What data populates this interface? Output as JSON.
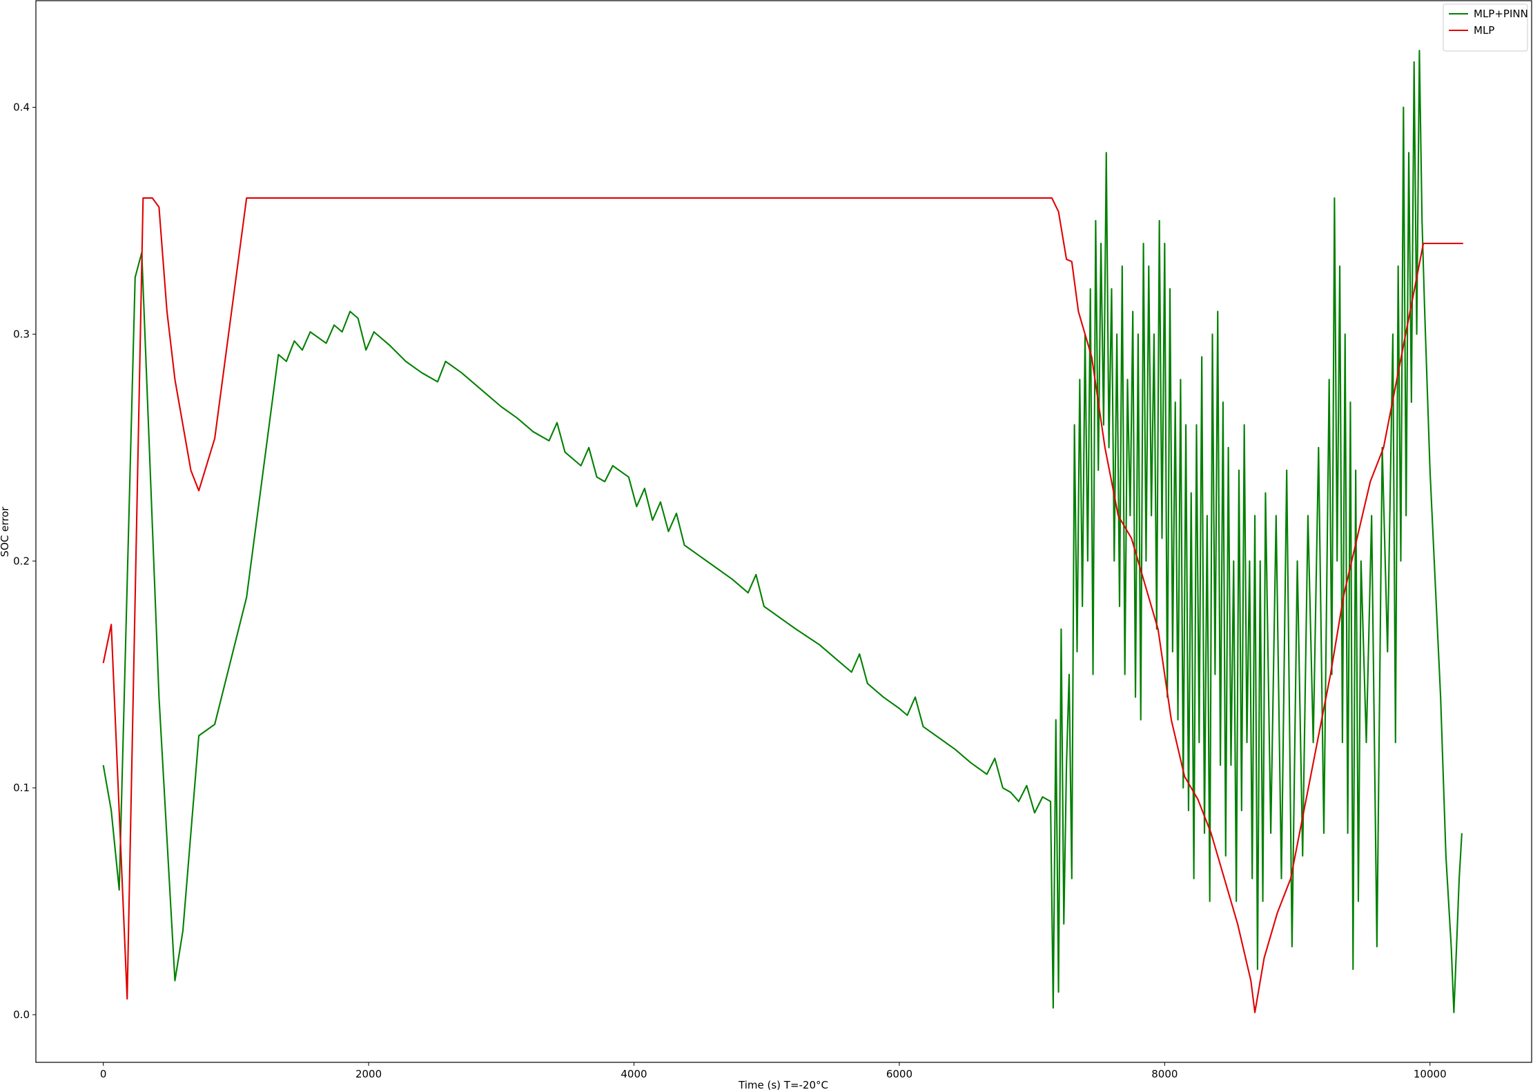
{
  "chart_data": {
    "type": "line",
    "xlabel": "Time (s) T=-20°C",
    "ylabel": "SOC error",
    "xlim": [
      -508,
      10766
    ],
    "ylim": [
      -0.021,
      0.447
    ],
    "xticks": [
      0,
      2000,
      4000,
      6000,
      8000,
      10000
    ],
    "yticks": [
      {
        "value": 0,
        "label": "0.0"
      },
      0.1,
      0.2,
      0.3,
      0.4
    ],
    "legend": "upper right",
    "series": [
      {
        "name": "MLP+PINN",
        "color": "#008000",
        "x": [
          0,
          60,
          120,
          240,
          290,
          420,
          540,
          600,
          720,
          840,
          1080,
          1320,
          1380,
          1440,
          1500,
          1560,
          1680,
          1740,
          1800,
          1860,
          1920,
          1980,
          2040,
          2160,
          2280,
          2400,
          2520,
          2580,
          2700,
          2820,
          3000,
          3120,
          3240,
          3360,
          3420,
          3480,
          3600,
          3660,
          3720,
          3780,
          3840,
          3960,
          4020,
          4080,
          4140,
          4200,
          4260,
          4320,
          4380,
          4500,
          4620,
          4740,
          4860,
          4920,
          4980,
          5100,
          5220,
          5400,
          5520,
          5640,
          5700,
          5760,
          5880,
          6000,
          6060,
          6120,
          6180,
          6300,
          6420,
          6540,
          6660,
          6720,
          6780,
          6840,
          6900,
          6960,
          7020,
          7080,
          7140,
          7160,
          7180,
          7200,
          7220,
          7240,
          7260,
          7280,
          7300,
          7320,
          7340,
          7360,
          7380,
          7400,
          7420,
          7440,
          7460,
          7480,
          7500,
          7520,
          7540,
          7560,
          7580,
          7600,
          7620,
          7640,
          7660,
          7680,
          7700,
          7720,
          7740,
          7760,
          7780,
          7800,
          7820,
          7840,
          7860,
          7880,
          7900,
          7920,
          7940,
          7960,
          7980,
          8000,
          8020,
          8040,
          8060,
          8080,
          8100,
          8120,
          8140,
          8160,
          8180,
          8200,
          8220,
          8240,
          8260,
          8280,
          8300,
          8320,
          8340,
          8360,
          8380,
          8400,
          8420,
          8440,
          8460,
          8480,
          8500,
          8520,
          8540,
          8560,
          8580,
          8600,
          8620,
          8640,
          8660,
          8680,
          8700,
          8720,
          8740,
          8760,
          8800,
          8840,
          8880,
          8920,
          8960,
          9000,
          9040,
          9080,
          9120,
          9160,
          9200,
          9240,
          9260,
          9280,
          9300,
          9320,
          9340,
          9360,
          9380,
          9400,
          9420,
          9440,
          9460,
          9480,
          9520,
          9560,
          9600,
          9640,
          9680,
          9720,
          9740,
          9760,
          9780,
          9800,
          9820,
          9840,
          9860,
          9880,
          9900,
          9920,
          9940,
          9960,
          10000,
          10040,
          10080,
          10120,
          10160,
          10180,
          10200,
          10220,
          10240
        ],
        "values": [
          0.11,
          0.09,
          0.055,
          0.325,
          0.336,
          0.14,
          0.015,
          0.037,
          0.123,
          0.128,
          0.184,
          0.291,
          0.288,
          0.297,
          0.293,
          0.301,
          0.296,
          0.304,
          0.301,
          0.31,
          0.307,
          0.293,
          0.301,
          0.295,
          0.288,
          0.283,
          0.279,
          0.288,
          0.283,
          0.277,
          0.268,
          0.263,
          0.257,
          0.253,
          0.261,
          0.248,
          0.242,
          0.25,
          0.237,
          0.235,
          0.242,
          0.237,
          0.224,
          0.232,
          0.218,
          0.226,
          0.213,
          0.221,
          0.207,
          0.202,
          0.197,
          0.192,
          0.186,
          0.194,
          0.18,
          0.175,
          0.17,
          0.163,
          0.157,
          0.151,
          0.159,
          0.146,
          0.14,
          0.135,
          0.132,
          0.14,
          0.127,
          0.122,
          0.117,
          0.111,
          0.106,
          0.113,
          0.1,
          0.098,
          0.094,
          0.101,
          0.089,
          0.096,
          0.094,
          0.003,
          0.13,
          0.01,
          0.17,
          0.04,
          0.11,
          0.15,
          0.06,
          0.26,
          0.16,
          0.28,
          0.18,
          0.3,
          0.2,
          0.32,
          0.15,
          0.35,
          0.24,
          0.34,
          0.26,
          0.38,
          0.25,
          0.32,
          0.2,
          0.3,
          0.18,
          0.33,
          0.15,
          0.28,
          0.22,
          0.31,
          0.14,
          0.3,
          0.13,
          0.34,
          0.2,
          0.33,
          0.22,
          0.3,
          0.17,
          0.35,
          0.21,
          0.34,
          0.14,
          0.32,
          0.16,
          0.27,
          0.13,
          0.28,
          0.1,
          0.26,
          0.09,
          0.23,
          0.06,
          0.26,
          0.12,
          0.29,
          0.08,
          0.22,
          0.05,
          0.3,
          0.15,
          0.31,
          0.11,
          0.27,
          0.07,
          0.25,
          0.11,
          0.2,
          0.05,
          0.24,
          0.09,
          0.26,
          0.12,
          0.2,
          0.06,
          0.22,
          0.02,
          0.2,
          0.05,
          0.23,
          0.08,
          0.22,
          0.06,
          0.24,
          0.03,
          0.2,
          0.07,
          0.22,
          0.12,
          0.25,
          0.08,
          0.28,
          0.15,
          0.36,
          0.2,
          0.33,
          0.12,
          0.3,
          0.08,
          0.27,
          0.02,
          0.24,
          0.05,
          0.2,
          0.12,
          0.22,
          0.03,
          0.25,
          0.16,
          0.3,
          0.12,
          0.33,
          0.2,
          0.4,
          0.22,
          0.38,
          0.27,
          0.42,
          0.3,
          0.425,
          0.35,
          0.31,
          0.24,
          0.19,
          0.14,
          0.07,
          0.03,
          0.001,
          0.03,
          0.06,
          0.08
        ]
      },
      {
        "name": "MLP",
        "color": "#e00000",
        "x": [
          0,
          60,
          180,
          300,
          370,
          420,
          480,
          540,
          660,
          720,
          840,
          1080,
          7150,
          7200,
          7260,
          7300,
          7350,
          7450,
          7550,
          7650,
          7750,
          7850,
          7950,
          8050,
          8150,
          8250,
          8350,
          8450,
          8550,
          8650,
          8680,
          8750,
          8850,
          8950,
          9050,
          9150,
          9250,
          9350,
          9450,
          9550,
          9650,
          9750,
          9850,
          9950,
          10250
        ],
        "values": [
          0.155,
          0.172,
          0.007,
          0.36,
          0.36,
          0.356,
          0.31,
          0.28,
          0.24,
          0.231,
          0.254,
          0.36,
          0.36,
          0.354,
          0.333,
          0.332,
          0.31,
          0.29,
          0.25,
          0.22,
          0.21,
          0.19,
          0.17,
          0.13,
          0.105,
          0.095,
          0.08,
          0.06,
          0.04,
          0.015,
          0.001,
          0.025,
          0.045,
          0.06,
          0.09,
          0.12,
          0.15,
          0.185,
          0.21,
          0.235,
          0.25,
          0.28,
          0.31,
          0.34,
          0.34
        ]
      }
    ]
  }
}
